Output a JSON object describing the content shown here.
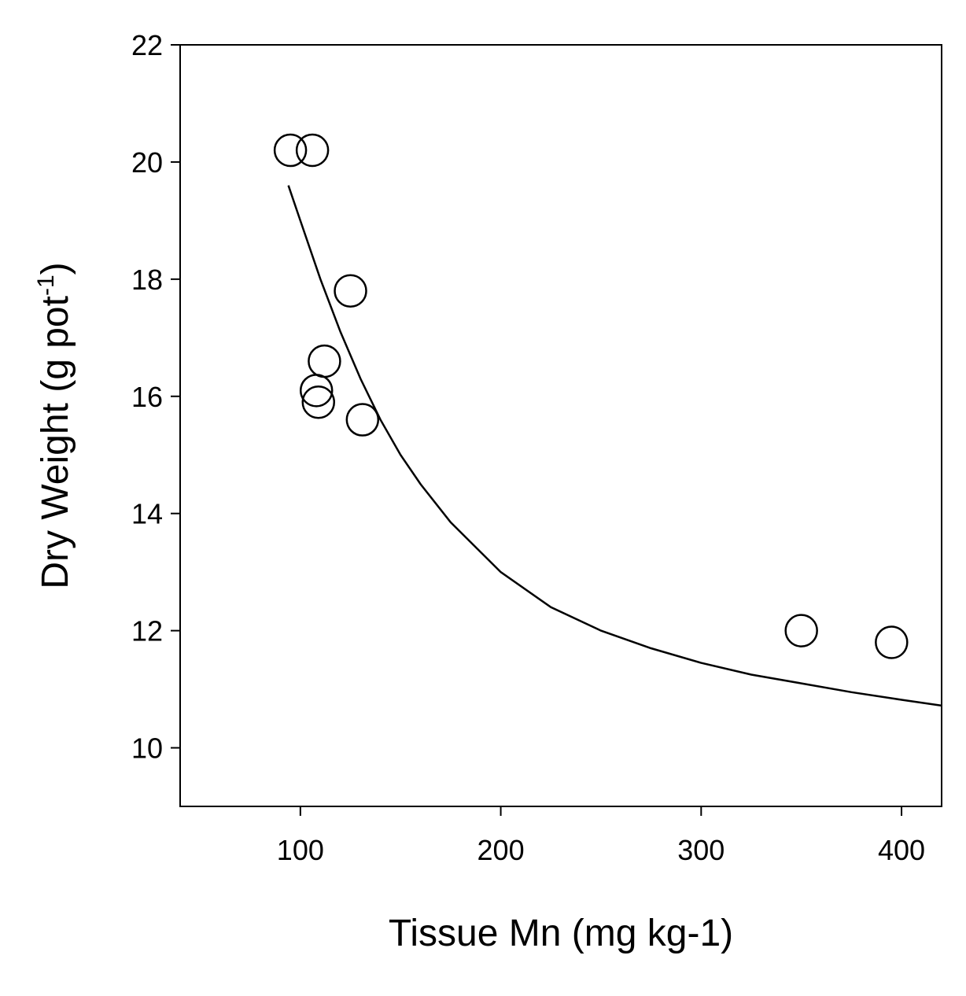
{
  "chart_data": {
    "type": "scatter",
    "xlabel": "Tissue Mn (mg kg-1)",
    "ylabel_main": "Dry Weight (g pot",
    "ylabel_sup": "-1",
    "ylabel_close": ")",
    "xlim": [
      40,
      420
    ],
    "ylim": [
      9,
      22
    ],
    "x_ticks": [
      100,
      200,
      300,
      400
    ],
    "y_ticks": [
      10,
      12,
      14,
      16,
      18,
      20,
      22
    ],
    "grid": false,
    "legend": "none",
    "points": [
      {
        "x": 95,
        "y": 20.2
      },
      {
        "x": 106,
        "y": 20.2
      },
      {
        "x": 125,
        "y": 17.8
      },
      {
        "x": 112,
        "y": 16.6
      },
      {
        "x": 108,
        "y": 16.1
      },
      {
        "x": 109,
        "y": 15.9
      },
      {
        "x": 131,
        "y": 15.6
      },
      {
        "x": 350,
        "y": 12.0
      },
      {
        "x": 395,
        "y": 11.8
      }
    ],
    "fit_curve": {
      "x": [
        94,
        100,
        110,
        120,
        130,
        140,
        150,
        160,
        175,
        200,
        225,
        250,
        275,
        300,
        325,
        350,
        375,
        400,
        420
      ],
      "y": [
        19.6,
        19.0,
        18.0,
        17.1,
        16.3,
        15.6,
        15.0,
        14.5,
        13.85,
        13.0,
        12.4,
        12.0,
        11.7,
        11.45,
        11.25,
        11.1,
        10.95,
        10.82,
        10.72
      ]
    }
  }
}
